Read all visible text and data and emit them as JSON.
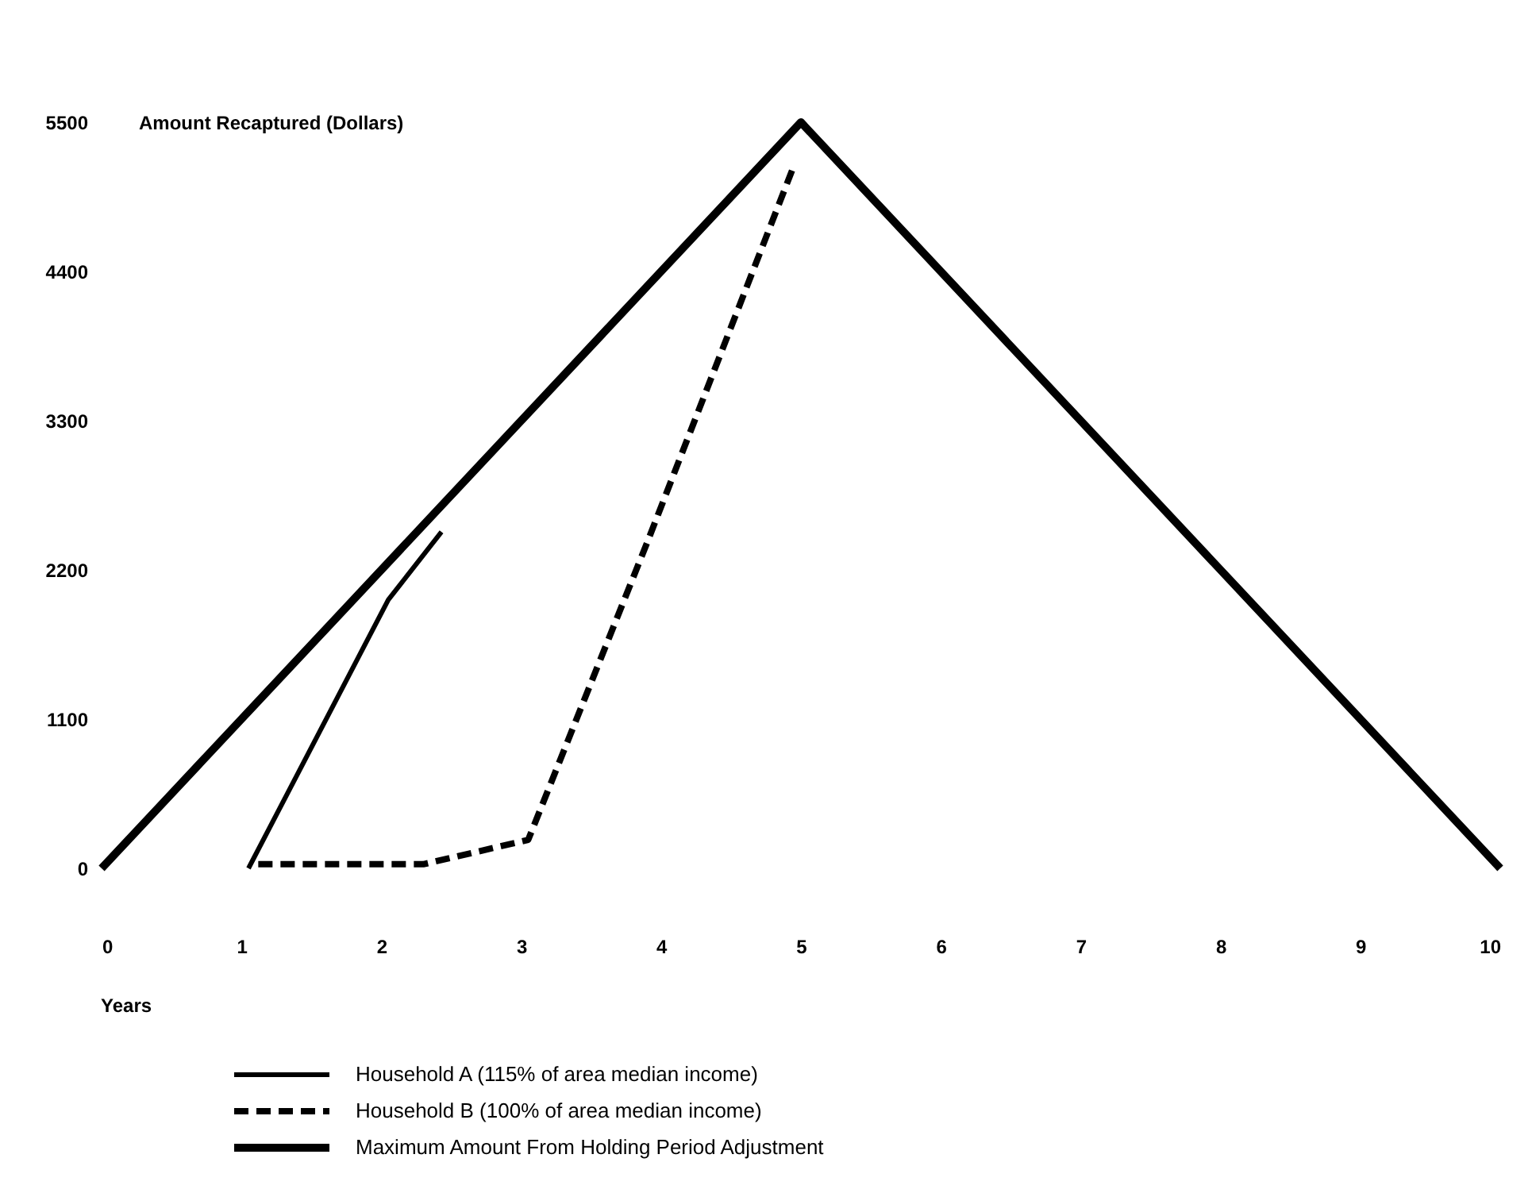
{
  "chart_data": {
    "type": "line",
    "ylabel": "Amount Recaptured (Dollars)",
    "xlabel": "Years",
    "xlim": [
      0,
      10
    ],
    "xticks": [
      0,
      1,
      2,
      3,
      4,
      5,
      6,
      7,
      8,
      9,
      10
    ],
    "ylim": [
      0,
      5500
    ],
    "yticks": [
      0,
      1100,
      2200,
      3300,
      4400,
      5500
    ],
    "grid": false,
    "legend": "bottom",
    "marker": "none",
    "series": [
      {
        "name": "Household A (115% of area median income)",
        "color": "#000000",
        "line_style": "solid",
        "x": [
          1.05,
          2.05,
          2.43
        ],
        "values": [
          0,
          1980,
          2480
        ]
      },
      {
        "name": "Household B (100% of area median income)",
        "color": "#000000",
        "line_style": "dashed",
        "x": [
          1.12,
          2.3,
          3.05,
          3.9,
          4.95
        ],
        "values": [
          30,
          30,
          210,
          2400,
          5180
        ]
      },
      {
        "name": "Maximum Amount From Holding Period Adjustment",
        "color": "#000000",
        "line_style": "solid",
        "x": [
          0,
          5,
          10
        ],
        "values": [
          0,
          5500,
          0
        ]
      }
    ]
  }
}
